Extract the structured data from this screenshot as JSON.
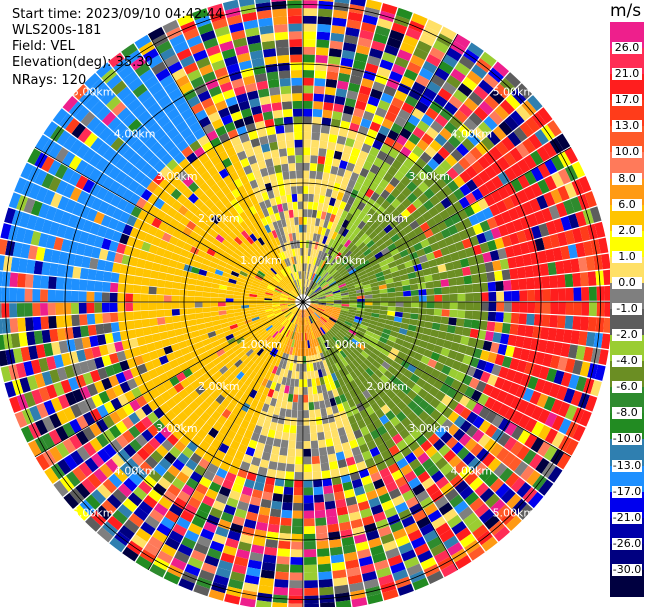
{
  "header": {
    "start_time": "Start time: 2023/09/10 04:42:44",
    "instrument": "WLS200s-181",
    "field": "Field: VEL",
    "elevation": "Elevation(deg): 35.30",
    "nrays": "NRays: 120"
  },
  "colorbar": {
    "unit": "m/s",
    "ticks": [
      "26.0",
      "21.0",
      "17.0",
      "13.0",
      "10.0",
      "8.0",
      "6.0",
      "2.0",
      "1.0",
      "0.0",
      "-1.0",
      "-2.0",
      "-4.0",
      "-6.0",
      "-8.0",
      "-10.0",
      "-13.0",
      "-17.0",
      "-21.0",
      "-26.0",
      "-30.0"
    ],
    "colors": [
      "#ee1f8c",
      "#ff2d55",
      "#ff1e1e",
      "#ff3c1a",
      "#ff5a28",
      "#ff7a5a",
      "#ff9a14",
      "#ffc400",
      "#ffff00",
      "#ffe066",
      "#7f7f7f",
      "#5d5d5d",
      "#9acd32",
      "#6b8e23",
      "#2e8b2e",
      "#228b22",
      "#2f7fb0",
      "#1e90ff",
      "#0000ee",
      "#0000aa",
      "#000080",
      "#000040"
    ]
  },
  "chart_data": {
    "type": "ppi",
    "field": "VEL",
    "units": "m/s",
    "n_rays": 120,
    "elevation_deg": 35.3,
    "range_rings_km": [
      1,
      2,
      3,
      4,
      5
    ],
    "ring_labels": [
      "1.00km",
      "2.00km",
      "3.00km",
      "4.00km",
      "5.00km"
    ],
    "max_range_km": 5.2,
    "vmin": -30,
    "vmax": 30,
    "pattern": {
      "description_sectors": [
        {
          "azimuth_range_deg": [
            270,
            330
          ],
          "range_km": [
            3.2,
            5.2
          ],
          "velocity": -15
        },
        {
          "azimuth_range_deg": [
            50,
            120
          ],
          "range_km": [
            3.5,
            5.2
          ],
          "velocity": 18
        },
        {
          "azimuth_range_deg": [
            200,
            320
          ],
          "range_km": [
            0.6,
            3.0
          ],
          "velocity": 4
        },
        {
          "azimuth_range_deg": [
            40,
            160
          ],
          "range_km": [
            0.6,
            3.0
          ],
          "velocity": -5
        },
        {
          "azimuth_range_deg": [
            100,
            200
          ],
          "range_km": [
            0.1,
            0.9
          ],
          "velocity": 7
        }
      ]
    }
  }
}
